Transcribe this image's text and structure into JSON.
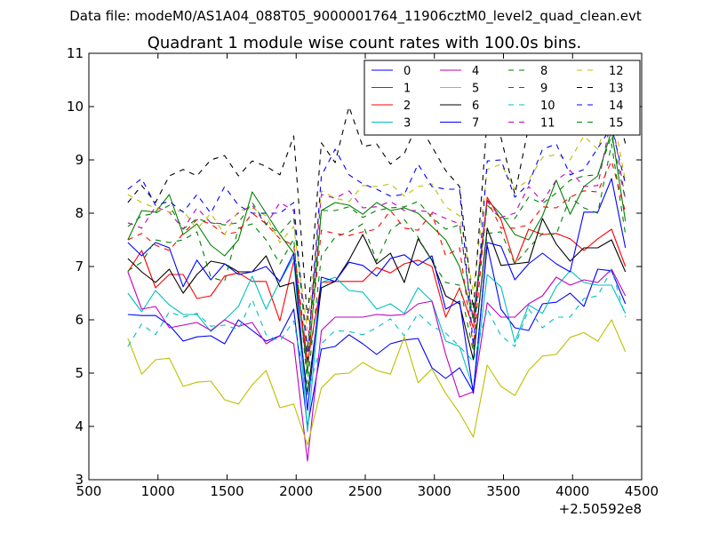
{
  "figure": {
    "suptitle": "Data file: modeM0/AS1A04_088T05_9000001764_11906cztM0_level2_quad_clean.evt"
  },
  "chart_data": {
    "type": "line",
    "title": "Quadrant 1 module wise count rates with 100.0s bins.",
    "xlabel": "",
    "ylabel": "",
    "x_offset_label": "+2.50592e8",
    "xlim": [
      500,
      4500
    ],
    "ylim": [
      3,
      11
    ],
    "xticks": [
      500,
      1000,
      1500,
      2000,
      2500,
      3000,
      3500,
      4000,
      4500
    ],
    "yticks": [
      3,
      4,
      5,
      6,
      7,
      8,
      9,
      10,
      11
    ],
    "legend_position": "top-right",
    "x": [
      782,
      882,
      982,
      1082,
      1182,
      1282,
      1382,
      1482,
      1582,
      1682,
      1782,
      1882,
      1982,
      2082,
      2182,
      2282,
      2382,
      2482,
      2582,
      2682,
      2782,
      2882,
      2982,
      3082,
      3182,
      3282,
      3382,
      3482,
      3582,
      3682,
      3782,
      3882,
      3982,
      4082,
      4182,
      4282,
      4382
    ],
    "series": [
      {
        "name": "0",
        "color": "#0000ff",
        "style": "solid",
        "values": [
          6.1,
          6.08,
          6.08,
          5.9,
          5.6,
          5.68,
          5.7,
          5.55,
          6.0,
          5.8,
          5.6,
          5.7,
          6.2,
          4.0,
          5.45,
          5.5,
          5.72,
          5.55,
          5.35,
          5.55,
          5.62,
          5.65,
          5.1,
          4.9,
          5.1,
          4.65,
          7.4,
          6.2,
          5.85,
          5.8,
          6.3,
          6.33,
          6.5,
          6.25,
          6.95,
          6.92,
          6.3
        ]
      },
      {
        "name": "1",
        "color": "#008000",
        "style": "solid",
        "values": [
          7.5,
          8.05,
          8.02,
          8.35,
          7.6,
          7.8,
          7.4,
          7.2,
          7.5,
          8.4,
          8.0,
          7.6,
          7.25,
          5.0,
          8.05,
          8.2,
          8.15,
          7.98,
          8.2,
          8.05,
          8.1,
          8.0,
          7.75,
          7.5,
          7.0,
          6.05,
          8.25,
          7.98,
          7.6,
          7.5,
          7.95,
          8.62,
          7.98,
          8.5,
          8.7,
          9.55,
          7.85
        ]
      },
      {
        "name": "2",
        "color": "#ff0000",
        "style": "solid",
        "values": [
          6.9,
          7.3,
          6.6,
          6.85,
          6.85,
          6.4,
          6.45,
          6.82,
          6.88,
          6.72,
          6.72,
          5.98,
          7.1,
          5.2,
          6.7,
          6.72,
          6.72,
          6.72,
          6.98,
          6.88,
          7.05,
          7.12,
          7.0,
          6.05,
          6.6,
          5.85,
          8.3,
          7.88,
          7.05,
          7.7,
          7.6,
          7.62,
          7.52,
          7.3,
          7.52,
          7.7,
          7.0
        ]
      },
      {
        "name": "3",
        "color": "#00bfbf",
        "style": "solid",
        "values": [
          6.5,
          6.15,
          6.55,
          6.28,
          6.1,
          6.1,
          5.78,
          6.0,
          6.25,
          6.82,
          6.2,
          6.72,
          7.18,
          3.9,
          6.7,
          6.8,
          6.55,
          6.52,
          6.2,
          6.3,
          6.12,
          6.6,
          6.35,
          5.6,
          5.5,
          4.7,
          6.85,
          6.62,
          5.58,
          6.28,
          6.12,
          6.62,
          6.92,
          6.7,
          6.65,
          6.65,
          6.12
        ]
      },
      {
        "name": "4",
        "color": "#bf00bf",
        "style": "solid",
        "values": [
          6.9,
          6.2,
          6.25,
          5.85,
          5.9,
          5.95,
          5.8,
          6.0,
          5.88,
          5.95,
          5.55,
          5.7,
          5.55,
          3.35,
          5.8,
          6.05,
          6.05,
          6.05,
          6.1,
          6.08,
          6.1,
          6.3,
          6.35,
          5.35,
          4.55,
          4.65,
          6.32,
          6.05,
          6.05,
          6.3,
          6.45,
          6.8,
          6.65,
          6.75,
          6.7,
          6.95,
          6.45
        ]
      },
      {
        "name": "5",
        "color": "#bfbf00",
        "style": "solid",
        "values": [
          5.65,
          4.98,
          5.25,
          5.28,
          4.75,
          4.83,
          4.85,
          4.5,
          4.42,
          4.78,
          5.05,
          4.35,
          4.42,
          3.65,
          4.72,
          4.98,
          5.0,
          5.2,
          5.05,
          4.98,
          5.68,
          4.82,
          5.08,
          4.62,
          4.25,
          3.8,
          5.15,
          4.75,
          4.58,
          5.05,
          5.32,
          5.35,
          5.67,
          5.76,
          5.6,
          6.0,
          5.4
        ]
      },
      {
        "name": "6",
        "color": "#000000",
        "style": "solid",
        "values": [
          7.15,
          6.9,
          6.7,
          6.95,
          6.5,
          6.85,
          7.1,
          7.05,
          6.9,
          6.9,
          7.2,
          6.62,
          6.7,
          4.6,
          6.6,
          6.72,
          7.12,
          7.6,
          7.05,
          7.25,
          6.7,
          7.52,
          7.12,
          6.45,
          6.3,
          5.25,
          7.72,
          7.02,
          7.05,
          7.08,
          7.9,
          7.42,
          7.1,
          7.35,
          7.35,
          7.5,
          6.9
        ]
      },
      {
        "name": "7",
        "color": "#0000ff",
        "style": "solid",
        "values": [
          7.45,
          7.2,
          7.45,
          7.35,
          6.62,
          7.12,
          6.75,
          7.05,
          6.85,
          6.9,
          7.0,
          6.72,
          7.25,
          4.3,
          6.8,
          6.72,
          7.08,
          7.02,
          6.82,
          7.15,
          7.22,
          7.02,
          7.2,
          6.2,
          6.35,
          4.62,
          7.45,
          7.38,
          6.75,
          7.05,
          7.25,
          7.05,
          6.9,
          8.02,
          8.02,
          8.65,
          7.35
        ]
      },
      {
        "name": "8",
        "color": "#008000",
        "style": "dashed",
        "values": [
          6.92,
          7.08,
          7.5,
          7.45,
          7.5,
          7.65,
          6.8,
          6.72,
          7.72,
          7.8,
          7.5,
          7.05,
          7.52,
          4.8,
          7.2,
          7.55,
          7.65,
          7.8,
          7.1,
          7.68,
          7.88,
          7.55,
          7.1,
          6.7,
          6.65,
          5.4,
          7.62,
          7.65,
          7.05,
          7.35,
          7.62,
          7.6,
          8.3,
          8.1,
          8.0,
          9.3,
          7.6
        ]
      },
      {
        "name": "9",
        "color": "#ff0000",
        "style": "dashed",
        "values": [
          7.5,
          7.62,
          7.4,
          7.3,
          7.62,
          7.88,
          7.8,
          7.6,
          7.65,
          8.0,
          7.8,
          7.52,
          7.4,
          5.2,
          7.68,
          7.62,
          7.58,
          7.65,
          7.7,
          8.05,
          7.72,
          7.68,
          8.0,
          7.2,
          7.35,
          5.5,
          8.25,
          7.72,
          7.72,
          7.78,
          8.12,
          8.1,
          8.3,
          8.42,
          8.4,
          8.98,
          8.02
        ]
      },
      {
        "name": "10",
        "color": "#00bfbf",
        "style": "dashed",
        "values": [
          5.5,
          5.92,
          5.72,
          6.15,
          6.05,
          6.12,
          5.88,
          5.9,
          5.82,
          6.38,
          5.72,
          5.6,
          5.98,
          4.62,
          5.55,
          5.8,
          5.78,
          5.72,
          5.85,
          6.02,
          5.7,
          6.12,
          5.88,
          5.75,
          5.5,
          5.22,
          6.2,
          5.7,
          5.5,
          6.2,
          5.85,
          6.05,
          6.05,
          6.4,
          6.45,
          6.95,
          6.05
        ]
      },
      {
        "name": "11",
        "color": "#bf00bf",
        "style": "dashed",
        "values": [
          7.82,
          7.72,
          8.12,
          8.02,
          7.7,
          8.1,
          7.82,
          7.8,
          8.0,
          8.15,
          7.78,
          8.2,
          8.05,
          5.5,
          8.35,
          8.28,
          8.42,
          8.1,
          8.12,
          8.22,
          8.05,
          8.05,
          8.02,
          7.9,
          7.8,
          6.0,
          8.22,
          7.92,
          8.0,
          8.5,
          8.22,
          8.62,
          8.8,
          8.5,
          8.52,
          9.8,
          8.25
        ]
      },
      {
        "name": "12",
        "color": "#bfbf00",
        "style": "dashed",
        "values": [
          8.35,
          8.2,
          8.1,
          8.02,
          8.05,
          7.7,
          8.0,
          7.6,
          8.05,
          8.1,
          7.95,
          7.45,
          7.75,
          5.8,
          8.42,
          8.28,
          8.22,
          8.52,
          8.5,
          8.55,
          8.32,
          8.5,
          8.55,
          8.12,
          7.95,
          6.52,
          8.82,
          8.92,
          8.45,
          8.62,
          9.05,
          9.1,
          9.0,
          9.45,
          9.2,
          10.0,
          8.6
        ]
      },
      {
        "name": "13",
        "color": "#000000",
        "style": "dashed",
        "values": [
          8.2,
          8.52,
          8.2,
          8.7,
          8.82,
          8.7,
          9.0,
          9.08,
          8.7,
          8.98,
          8.88,
          8.72,
          9.45,
          6.0,
          9.32,
          8.95,
          10.0,
          9.25,
          9.3,
          8.92,
          9.12,
          9.7,
          9.25,
          8.8,
          8.5,
          6.2,
          9.78,
          9.42,
          8.35,
          9.62,
          9.6,
          9.68,
          9.95,
          10.1,
          10.5,
          10.42,
          9.3
        ]
      },
      {
        "name": "14",
        "color": "#0000ff",
        "style": "dashed",
        "values": [
          8.45,
          8.65,
          8.15,
          8.22,
          8.02,
          8.35,
          8.0,
          8.5,
          8.15,
          8.0,
          8.0,
          8.0,
          8.2,
          5.25,
          8.7,
          9.2,
          8.72,
          8.55,
          8.45,
          8.32,
          8.35,
          8.92,
          8.5,
          8.45,
          8.45,
          5.5,
          8.98,
          9.0,
          8.3,
          8.55,
          9.2,
          9.3,
          8.72,
          8.82,
          9.22,
          9.62,
          8.55
        ]
      },
      {
        "name": "15",
        "color": "#008000",
        "style": "dashed",
        "values": [
          7.75,
          7.95,
          8.0,
          8.15,
          7.7,
          7.9,
          7.82,
          7.78,
          7.82,
          8.2,
          7.8,
          7.62,
          7.92,
          5.4,
          8.05,
          8.05,
          8.12,
          7.92,
          8.05,
          8.1,
          8.12,
          8.22,
          7.92,
          7.7,
          7.78,
          5.95,
          8.15,
          7.9,
          7.9,
          8.3,
          8.18,
          8.38,
          8.62,
          8.7,
          8.72,
          9.45,
          8.25
        ]
      }
    ]
  }
}
